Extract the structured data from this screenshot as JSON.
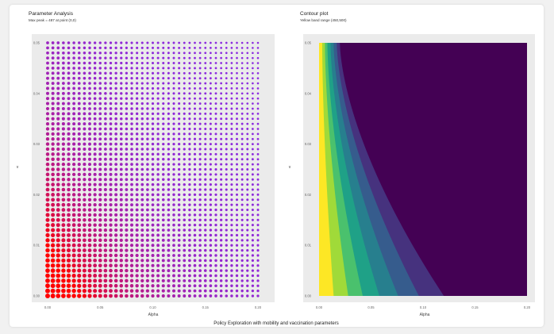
{
  "figure_caption": "Policy Exploration with mobility and vaccination parameters",
  "colors": {
    "panel_bg": "#ebebeb",
    "dot_low": "#ff0000",
    "dot_high": "#8a2be2",
    "contour_fill": [
      "#fde725",
      "#a0da39",
      "#4ac16d",
      "#1fa187",
      "#277f8e",
      "#365c8d",
      "#46327e",
      "#440154"
    ]
  },
  "chart_data": [
    {
      "type": "scatter",
      "title": "Parameter Analysis",
      "subtitle": "Max peak = 487 at point (0,0)",
      "xlabel": "Alpha",
      "ylabel": "v",
      "xlim": [
        0,
        0.2
      ],
      "ylim": [
        0,
        0.05
      ],
      "x_ticks": [
        0.0,
        0.05,
        0.1,
        0.15,
        0.2
      ],
      "x_tick_labels": [
        "0.00",
        "0.05",
        "0.10",
        "0.15",
        "0.20"
      ],
      "y_ticks": [
        0.0,
        0.01,
        0.02,
        0.03,
        0.04,
        0.05
      ],
      "y_tick_labels": [
        "0.00",
        "0.01",
        "0.02",
        "0.03",
        "0.04",
        "0.05"
      ],
      "grid": {
        "x_step": 0.005,
        "y_step": 0.001
      },
      "max_peak": 487,
      "max_point": [
        0,
        0
      ],
      "encoding": "dot size and color (red to purple) show peak, highest at origin"
    },
    {
      "type": "contour",
      "title": "Contour plot",
      "subtitle": "Yellow band range (450,500)",
      "xlabel": "Alpha",
      "ylabel": "v",
      "xlim": [
        0,
        0.2
      ],
      "ylim": [
        0,
        0.05
      ],
      "x_ticks": [
        0.0,
        0.05,
        0.1,
        0.15,
        0.2
      ],
      "x_tick_labels": [
        "0.00",
        "0.05",
        "0.10",
        "0.15",
        "0.20"
      ],
      "y_ticks": [
        0.0,
        0.01,
        0.02,
        0.03,
        0.04,
        0.05
      ],
      "y_tick_labels": [
        "0.00",
        "0.01",
        "0.02",
        "0.03",
        "0.04",
        "0.05"
      ],
      "yellow_band_range": [
        450,
        500
      ]
    }
  ]
}
